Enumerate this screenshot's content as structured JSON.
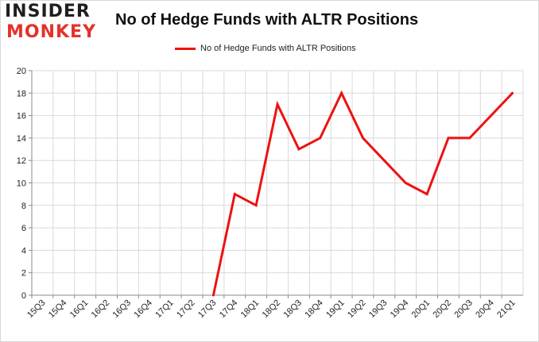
{
  "logo": {
    "line1": "INSIDER",
    "line2": "MONKEY"
  },
  "chart_data": {
    "type": "line",
    "title": "No of Hedge Funds with ALTR Positions",
    "xlabel": "",
    "ylabel": "",
    "ylim": [
      0,
      20
    ],
    "yticks": [
      0,
      2,
      4,
      6,
      8,
      10,
      12,
      14,
      16,
      18,
      20
    ],
    "grid": true,
    "legend_position": "top-center",
    "categories": [
      "15Q3",
      "15Q4",
      "16Q1",
      "16Q2",
      "16Q3",
      "16Q4",
      "17Q1",
      "17Q2",
      "17Q3",
      "17Q4",
      "18Q1",
      "18Q2",
      "18Q3",
      "18Q4",
      "19Q1",
      "19Q2",
      "19Q3",
      "19Q4",
      "20Q1",
      "20Q2",
      "20Q3",
      "20Q4",
      "21Q1"
    ],
    "series": [
      {
        "name": "No of Hedge Funds with ALTR Positions",
        "color": "#ee1111",
        "values": [
          null,
          null,
          null,
          null,
          null,
          null,
          null,
          null,
          0,
          9,
          8,
          17,
          13,
          14,
          18,
          14,
          12,
          10,
          9,
          14,
          14,
          16,
          18
        ]
      }
    ]
  }
}
